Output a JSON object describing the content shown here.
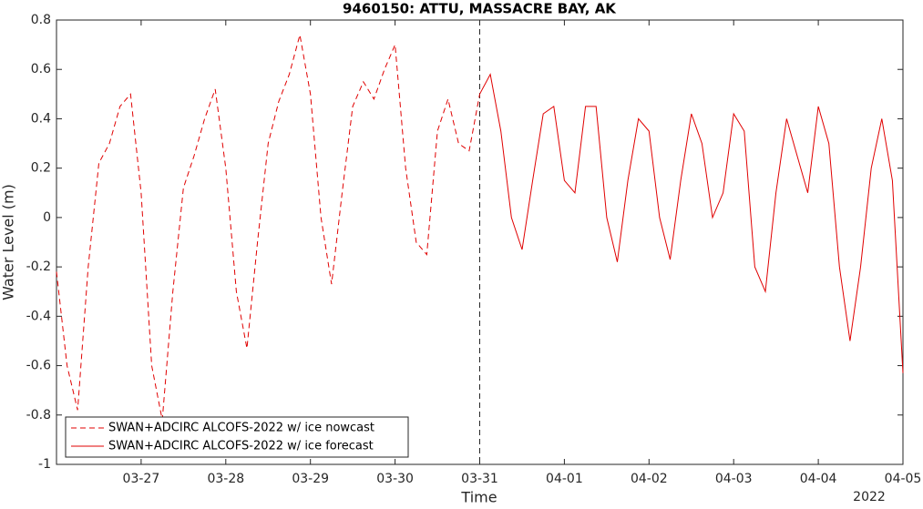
{
  "chart_data": {
    "type": "line",
    "title": "9460150: ATTU, MASSACRE BAY, AK",
    "xlabel": "Time",
    "ylabel": "Water Level (m)",
    "x_year_label": "2022",
    "xlim": [
      0,
      10
    ],
    "xticks": [
      {
        "value": 1,
        "label": "03-27"
      },
      {
        "value": 2,
        "label": "03-28"
      },
      {
        "value": 3,
        "label": "03-29"
      },
      {
        "value": 4,
        "label": "03-30"
      },
      {
        "value": 5,
        "label": "03-31"
      },
      {
        "value": 6,
        "label": "04-01"
      },
      {
        "value": 7,
        "label": "04-02"
      },
      {
        "value": 8,
        "label": "04-03"
      },
      {
        "value": 9,
        "label": "04-04"
      },
      {
        "value": 10,
        "label": "04-05"
      }
    ],
    "ylim": [
      -1,
      0.8
    ],
    "yticks": [
      -1,
      -0.8,
      -0.6,
      -0.4,
      -0.2,
      0,
      0.2,
      0.4,
      0.6,
      0.8
    ],
    "forecast_start": 5,
    "grid": false,
    "legend_position": "lower-left",
    "series": [
      {
        "name": "SWAN+ADCIRC ALCOFS-2022 w/ ice nowcast",
        "color": "#e00000",
        "dash": true,
        "x": [
          0,
          0.125,
          0.25,
          0.375,
          0.5,
          0.625,
          0.75,
          0.875,
          1,
          1.125,
          1.25,
          1.375,
          1.5,
          1.625,
          1.75,
          1.875,
          2,
          2.125,
          2.25,
          2.375,
          2.5,
          2.625,
          2.75,
          2.875,
          3,
          3.125,
          3.25,
          3.375,
          3.5,
          3.625,
          3.75,
          3.875,
          4,
          4.125,
          4.25,
          4.375,
          4.5,
          4.625,
          4.75,
          4.875,
          5
        ],
        "values": [
          -0.22,
          -0.6,
          -0.78,
          -0.2,
          0.22,
          0.3,
          0.45,
          0.5,
          0.1,
          -0.6,
          -0.82,
          -0.3,
          0.12,
          0.25,
          0.4,
          0.52,
          0.2,
          -0.3,
          -0.53,
          -0.1,
          0.3,
          0.47,
          0.58,
          0.74,
          0.5,
          0.0,
          -0.27,
          0.1,
          0.45,
          0.55,
          0.48,
          0.6,
          0.7,
          0.2,
          -0.1,
          -0.15,
          0.35,
          0.48,
          0.3,
          0.27,
          0.5
        ]
      },
      {
        "name": "SWAN+ADCIRC ALCOFS-2022 w/ ice forecast",
        "color": "#e00000",
        "dash": false,
        "x": [
          5,
          5.125,
          5.25,
          5.375,
          5.5,
          5.625,
          5.75,
          5.875,
          6,
          6.125,
          6.25,
          6.375,
          6.5,
          6.625,
          6.75,
          6.875,
          7,
          7.125,
          7.25,
          7.375,
          7.5,
          7.625,
          7.75,
          7.875,
          8,
          8.125,
          8.25,
          8.375,
          8.5,
          8.625,
          8.75,
          8.875,
          9,
          9.125,
          9.25,
          9.375,
          9.5,
          9.625,
          9.75,
          9.875,
          10
        ],
        "values": [
          0.5,
          0.58,
          0.35,
          0.0,
          -0.13,
          0.15,
          0.42,
          0.45,
          0.15,
          0.1,
          0.45,
          0.45,
          0.0,
          -0.18,
          0.15,
          0.4,
          0.35,
          0.0,
          -0.17,
          0.15,
          0.42,
          0.3,
          0.0,
          0.1,
          0.42,
          0.35,
          -0.2,
          -0.3,
          0.1,
          0.4,
          0.25,
          0.1,
          0.45,
          0.3,
          -0.2,
          -0.5,
          -0.2,
          0.2,
          0.4,
          0.15,
          -0.63
        ]
      }
    ]
  }
}
